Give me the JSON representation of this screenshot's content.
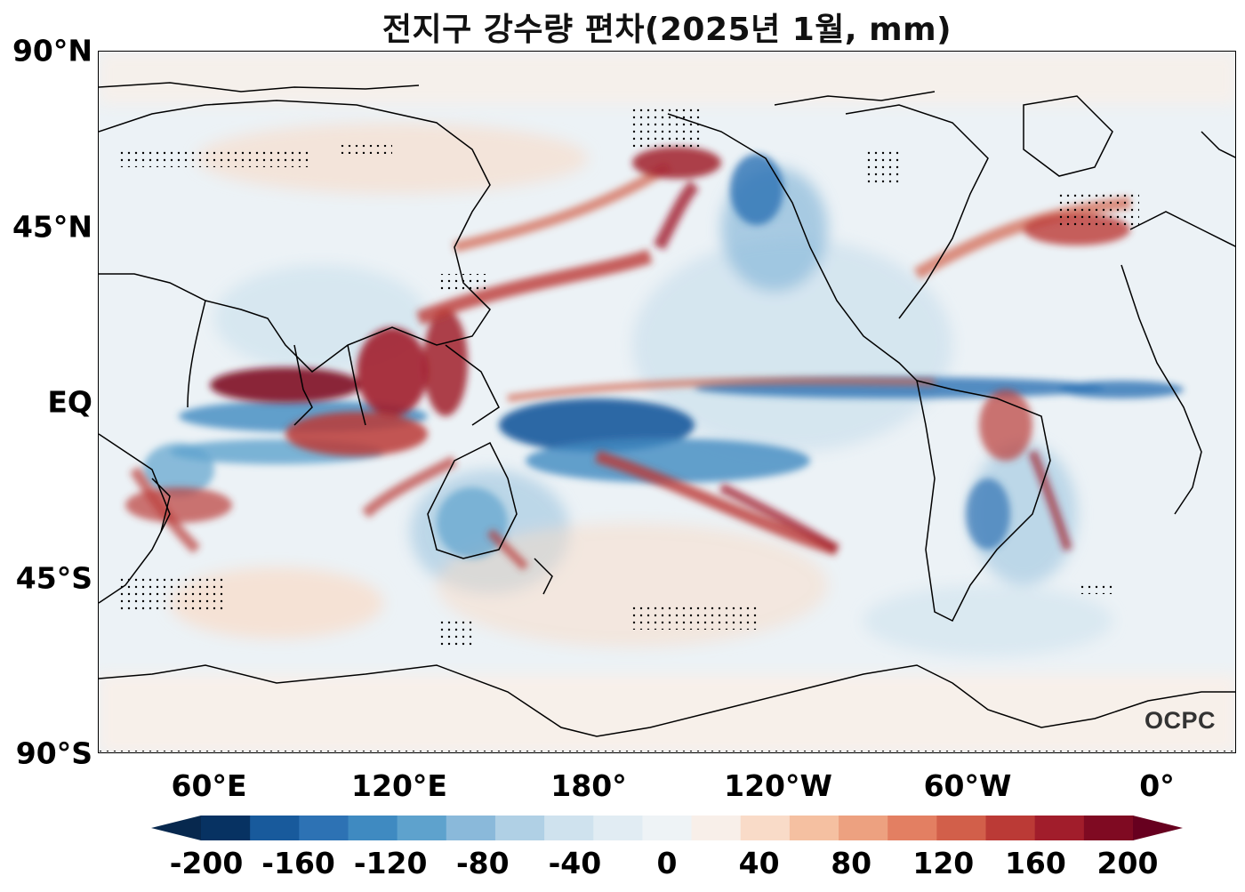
{
  "title": "전지구 강수량 편차(2025년 1월, mm)",
  "logo_text": "OCPC",
  "lat_labels": [
    "90°N",
    "45°N",
    "EQ",
    "45°S",
    "90°S"
  ],
  "lon_labels": [
    "60°E",
    "120°E",
    "180°",
    "120°W",
    "60°W",
    "0°"
  ],
  "colorbar": {
    "ticks": [
      "-200",
      "-160",
      "-120",
      "-80",
      "-40",
      "0",
      "40",
      "80",
      "120",
      "160",
      "200"
    ],
    "colors": [
      "#073262",
      "#185a9c",
      "#2d72b4",
      "#3f8ac1",
      "#5ea2cd",
      "#8ab9da",
      "#b0d0e5",
      "#cfe2ee",
      "#e1ecf3",
      "#eef3f6",
      "#f8efe9",
      "#f9dbc8",
      "#f5c0a1",
      "#eda180",
      "#e37f62",
      "#d25f4a",
      "#bb3a36",
      "#a11d2b",
      "#7f0a22"
    ],
    "under": "#07284e",
    "over": "#67001f"
  },
  "colors": {
    "ocean_bg": "#ecf2f6",
    "dry": "#2166ac",
    "wet": "#b2182b",
    "coastline": "#000000"
  }
}
